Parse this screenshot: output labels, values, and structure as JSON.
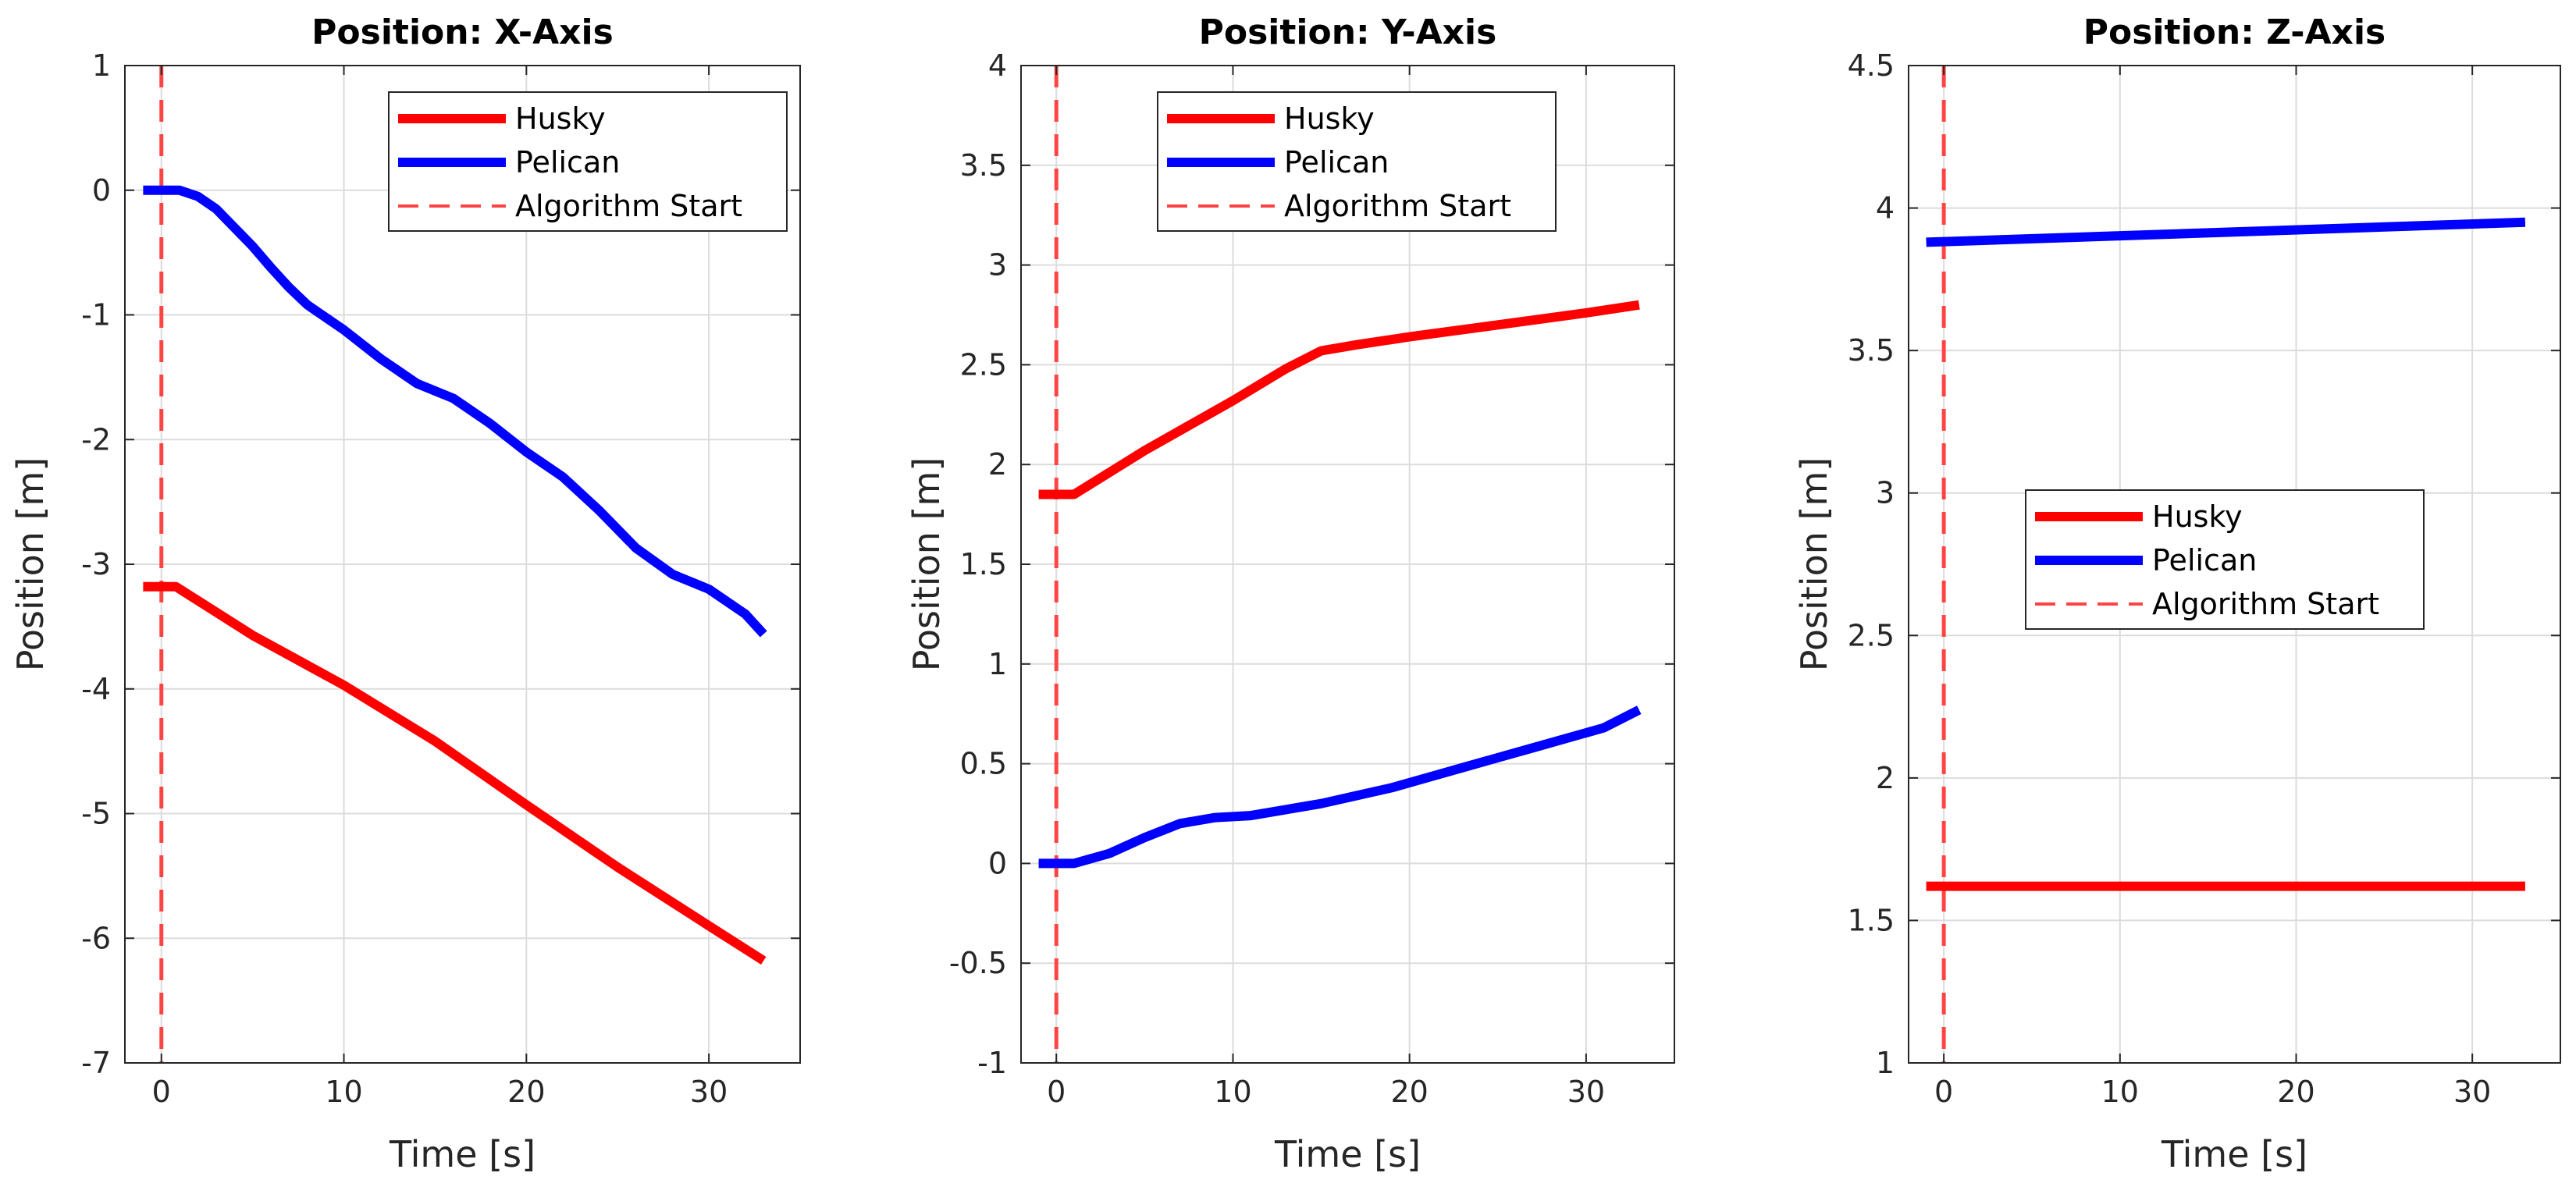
{
  "chart_data": [
    {
      "type": "line",
      "title": "Position: X-Axis",
      "xlabel": "Time [s]",
      "ylabel": "Position [m]",
      "xlim": [
        -2,
        35
      ],
      "ylim": [
        -7,
        1
      ],
      "xticks": [
        0,
        10,
        20,
        30
      ],
      "yticks": [
        -7,
        -6,
        -5,
        -4,
        -3,
        -2,
        -1,
        0,
        1
      ],
      "grid": true,
      "legend_position": "top-right",
      "legend": [
        "Husky",
        "Pelican",
        "Algorithm Start"
      ],
      "vline": {
        "name": "Algorithm Start",
        "x": 0,
        "color": "#ff4444",
        "style": "dashed"
      },
      "series": [
        {
          "name": "Husky",
          "color": "#ff0000",
          "x": [
            -1,
            0.8,
            5,
            10,
            15,
            20,
            25,
            30,
            33
          ],
          "y": [
            -3.18,
            -3.18,
            -3.57,
            -3.97,
            -4.42,
            -4.93,
            -5.43,
            -5.9,
            -6.18
          ]
        },
        {
          "name": "Pelican",
          "color": "#0000ff",
          "x": [
            -1,
            1,
            2,
            3,
            4,
            5,
            6,
            7,
            8,
            10,
            12,
            14,
            16,
            18,
            20,
            22,
            24,
            26,
            28,
            30,
            32,
            33
          ],
          "y": [
            0,
            0,
            -0.05,
            -0.15,
            -0.3,
            -0.45,
            -0.62,
            -0.78,
            -0.92,
            -1.12,
            -1.35,
            -1.55,
            -1.67,
            -1.87,
            -2.1,
            -2.3,
            -2.57,
            -2.87,
            -3.08,
            -3.2,
            -3.4,
            -3.56
          ]
        }
      ]
    },
    {
      "type": "line",
      "title": "Position: Y-Axis",
      "xlabel": "Time [s]",
      "ylabel": "Position [m]",
      "xlim": [
        -2,
        35
      ],
      "ylim": [
        -1,
        4
      ],
      "xticks": [
        0,
        10,
        20,
        30
      ],
      "yticks": [
        -1,
        -0.5,
        0,
        0.5,
        1,
        1.5,
        2,
        2.5,
        3,
        3.5,
        4
      ],
      "grid": true,
      "legend_position": "top-center",
      "legend": [
        "Husky",
        "Pelican",
        "Algorithm Start"
      ],
      "vline": {
        "name": "Algorithm Start",
        "x": 0,
        "color": "#ff4444",
        "style": "dashed"
      },
      "series": [
        {
          "name": "Husky",
          "color": "#ff0000",
          "x": [
            -1,
            1,
            5,
            10,
            13,
            15,
            17,
            20,
            25,
            30,
            33
          ],
          "y": [
            1.85,
            1.85,
            2.07,
            2.32,
            2.48,
            2.57,
            2.6,
            2.64,
            2.7,
            2.76,
            2.8
          ]
        },
        {
          "name": "Pelican",
          "color": "#0000ff",
          "x": [
            -1,
            1,
            3,
            5,
            7,
            9,
            11,
            13,
            15,
            17,
            19,
            21,
            23,
            25,
            27,
            29,
            31,
            33
          ],
          "y": [
            0,
            0,
            0.05,
            0.13,
            0.2,
            0.23,
            0.24,
            0.27,
            0.3,
            0.34,
            0.38,
            0.43,
            0.48,
            0.53,
            0.58,
            0.63,
            0.68,
            0.77
          ]
        }
      ]
    },
    {
      "type": "line",
      "title": "Position: Z-Axis",
      "xlabel": "Time [s]",
      "ylabel": "Position [m]",
      "xlim": [
        -2,
        35
      ],
      "ylim": [
        1,
        4.5
      ],
      "xticks": [
        0,
        10,
        20,
        30
      ],
      "yticks": [
        1,
        1.5,
        2,
        2.5,
        3,
        3.5,
        4,
        4.5
      ],
      "grid": true,
      "legend_position": "center",
      "legend": [
        "Husky",
        "Pelican",
        "Algorithm Start"
      ],
      "vline": {
        "name": "Algorithm Start",
        "x": 0,
        "color": "#ff4444",
        "style": "dashed"
      },
      "series": [
        {
          "name": "Husky",
          "color": "#ff0000",
          "x": [
            -1,
            33
          ],
          "y": [
            1.62,
            1.62
          ]
        },
        {
          "name": "Pelican",
          "color": "#0000ff",
          "x": [
            -1,
            33
          ],
          "y": [
            3.88,
            3.95
          ]
        }
      ]
    }
  ]
}
